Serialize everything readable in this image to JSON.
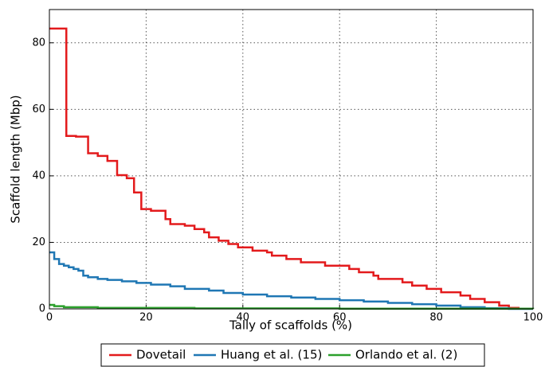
{
  "chart_data": {
    "type": "line",
    "drawstyle": "steps-post",
    "xlabel": "Tally of scaffolds (%)",
    "ylabel": "Scaffold length (Mbp)",
    "xlim": [
      0,
      100
    ],
    "ylim": [
      0,
      90
    ],
    "xticks": [
      0,
      20,
      40,
      60,
      80,
      100
    ],
    "yticks": [
      0,
      20,
      40,
      60,
      80
    ],
    "grid": true,
    "legend": "bottom",
    "series": [
      {
        "name": "Dovetail",
        "color": "#e31a1c",
        "x": [
          0,
          3.5,
          5.5,
          8,
          10,
          12,
          14,
          16,
          17.5,
          19,
          21,
          24,
          25,
          28,
          30,
          32,
          33,
          35,
          37,
          39,
          42,
          45,
          46,
          49,
          52,
          57,
          62,
          64,
          67,
          68,
          73,
          75,
          78,
          81,
          85,
          87,
          90,
          93,
          95,
          97
        ],
        "values": [
          84.3,
          52,
          51.8,
          46.8,
          46,
          44.5,
          40.2,
          39.3,
          35,
          30,
          29.5,
          27,
          25.5,
          25,
          24,
          23,
          21.5,
          20.5,
          19.5,
          18.5,
          17.5,
          17,
          16,
          15,
          14,
          13,
          12,
          11,
          10,
          9,
          8,
          7,
          6,
          5,
          4,
          3,
          2,
          1,
          0.3,
          0
        ]
      },
      {
        "name": "Huang et al. (15)",
        "color": "#1f77b4",
        "x": [
          0,
          1,
          2,
          3,
          4,
          5,
          6,
          7,
          8,
          10,
          12,
          15,
          18,
          21,
          25,
          28,
          33,
          36,
          40,
          45,
          50,
          55,
          60,
          65,
          70,
          75,
          80,
          85,
          90,
          95,
          100
        ],
        "values": [
          17,
          15,
          13.5,
          13,
          12.5,
          12,
          11.5,
          10,
          9.5,
          9,
          8.7,
          8.3,
          7.8,
          7.3,
          6.8,
          6,
          5.5,
          4.8,
          4.3,
          3.8,
          3.4,
          3,
          2.6,
          2.2,
          1.8,
          1.4,
          1,
          0.5,
          0.2,
          0,
          0
        ]
      },
      {
        "name": "Orlando et al. (2)",
        "color": "#2ca02c",
        "x": [
          0,
          1,
          3,
          10,
          30,
          60,
          100
        ],
        "values": [
          1.2,
          0.8,
          0.5,
          0.3,
          0.15,
          0.05,
          0
        ]
      }
    ]
  }
}
